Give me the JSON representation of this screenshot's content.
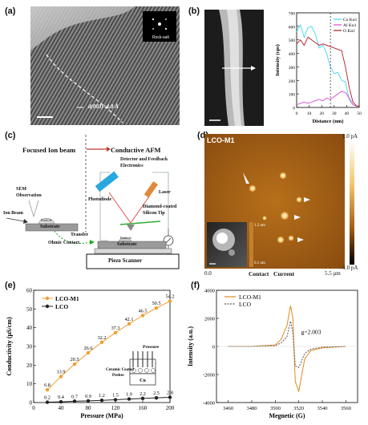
{
  "panels": {
    "a": {
      "label": "(a)",
      "inset_label": "Rock-salt",
      "d_spacing_label": "d(003)=4.8 Å"
    },
    "b": {
      "label": "(b)",
      "ylabel": "Intensity (cps)",
      "xlabel": "Distance (nm)",
      "ticks_x": [
        "0",
        "10",
        "20",
        "30",
        "40",
        "50"
      ],
      "ticks_y": [
        "0",
        "100",
        "200",
        "300",
        "400",
        "500",
        "600",
        "700"
      ],
      "legend": [
        "Co Kα1",
        "Al Kα1",
        "O Kα1"
      ],
      "colors": [
        "#3fd8ef",
        "#d44bd3",
        "#b5182a"
      ]
    },
    "c": {
      "label": "(c)",
      "title_left": "Focused Ion beam",
      "title_right": "Conductive AFM",
      "labels": {
        "detector": "Detector and Feedback Electronics",
        "laser": "Laser",
        "photodiode": "Photodiode",
        "tip": "Diamond-coated Silicon Tip",
        "sem": "SEM Observation",
        "ionbeam": "Ion Beam",
        "particle1": "Particle",
        "substrate1": "Substrate",
        "transfer": "Transfer",
        "ohmic": "Ohmic Contact",
        "particle2": "Particle",
        "substrate2": "Substrate",
        "piezo": "Piezo Scanner"
      }
    },
    "d": {
      "label": "(d)",
      "sample": "LCO-M1",
      "cbar_top": "1.0 pA",
      "cbar_bottom": "-1.0 pA",
      "x_start": "0.0",
      "x_end": "5.5 μm",
      "xlabel": "Contact   Current",
      "inset_top": "1.2 nm",
      "inset_bottom": "0.5 nm"
    },
    "e": {
      "label": "(e)",
      "legend": [
        "LCO-M1",
        "LCO"
      ],
      "ylabel": "Conductivity (μS/cm)",
      "xlabel": "Pressure (MPa)",
      "inset_title": "Pressure",
      "inset_text": "Ceramic Coated Probes",
      "inset_cu": "Cu",
      "ticks_x": [
        "0",
        "40",
        "80",
        "120",
        "160",
        "200"
      ],
      "ticks_y": [
        "0",
        "10",
        "20",
        "30",
        "40",
        "50",
        "60"
      ]
    },
    "f": {
      "label": "(f)",
      "legend": [
        "LCO-M1",
        "LCO"
      ],
      "ylabel": "Intensity (a.u.)",
      "xlabel": "Megnetic (G)",
      "annotation": "g=2.003",
      "ticks_x": [
        "3460",
        "3480",
        "3500",
        "3520",
        "3540",
        "3560"
      ],
      "ticks_y": [
        "-4000",
        "-2000",
        "0",
        "2000",
        "4000"
      ]
    }
  },
  "chart_data": [
    {
      "type": "line",
      "panel": "b",
      "xlabel": "Distance (nm)",
      "ylabel": "Intensity (cps)",
      "xlim": [
        0,
        50
      ],
      "ylim": [
        0,
        700
      ],
      "x": [
        0,
        3,
        6,
        9,
        12,
        15,
        18,
        21,
        24,
        27,
        30,
        33,
        36,
        39,
        42,
        45,
        48,
        50
      ],
      "series": [
        {
          "name": "Co Kα1",
          "color": "#3fd8ef",
          "values": [
            560,
            610,
            520,
            590,
            600,
            540,
            440,
            460,
            400,
            300,
            250,
            260,
            200,
            190,
            60,
            20,
            10,
            10
          ]
        },
        {
          "name": "Al Kα1",
          "color": "#d44bd3",
          "values": [
            20,
            30,
            40,
            30,
            40,
            50,
            60,
            50,
            70,
            60,
            80,
            100,
            120,
            110,
            70,
            20,
            10,
            10
          ]
        },
        {
          "name": "O Kα1",
          "color": "#b5182a",
          "values": [
            470,
            500,
            460,
            520,
            500,
            480,
            460,
            470,
            460,
            450,
            440,
            430,
            420,
            300,
            150,
            40,
            10,
            10
          ]
        }
      ]
    },
    {
      "type": "line",
      "panel": "e",
      "xlabel": "Pressure (MPa)",
      "ylabel": "Conductivity (μS/cm)",
      "xlim": [
        0,
        200
      ],
      "ylim": [
        0,
        60
      ],
      "x": [
        20,
        40,
        60,
        80,
        100,
        120,
        140,
        160,
        180,
        200
      ],
      "series": [
        {
          "name": "LCO-M1",
          "color": "#f0a030",
          "values": [
            6.8,
            13.9,
            20.5,
            26.6,
            32.2,
            37.3,
            42.1,
            46.5,
            50.5,
            54.2
          ]
        },
        {
          "name": "LCO",
          "color": "#222222",
          "values": [
            0.2,
            0.4,
            0.7,
            0.9,
            1.2,
            1.5,
            1.9,
            2.2,
            2.5,
            2.8
          ]
        }
      ]
    },
    {
      "type": "line",
      "panel": "f",
      "xlabel": "Megnetic (G)",
      "ylabel": "Intensity (a.u.)",
      "xlim": [
        3450,
        3570
      ],
      "ylim": [
        -4000,
        4000
      ],
      "x": [
        3460,
        3480,
        3500,
        3505,
        3510,
        3513,
        3515,
        3517,
        3520,
        3525,
        3530,
        3540,
        3560
      ],
      "series": [
        {
          "name": "LCO-M1",
          "color": "#e08a1f",
          "values": [
            0,
            0,
            100,
            500,
            1500,
            2900,
            2000,
            -2500,
            -3200,
            -900,
            -300,
            -100,
            0
          ]
        },
        {
          "name": "LCO",
          "color": "#555555",
          "values": [
            0,
            0,
            50,
            250,
            700,
            1800,
            1000,
            -1400,
            -1500,
            -500,
            -200,
            -50,
            0
          ]
        }
      ]
    }
  ]
}
